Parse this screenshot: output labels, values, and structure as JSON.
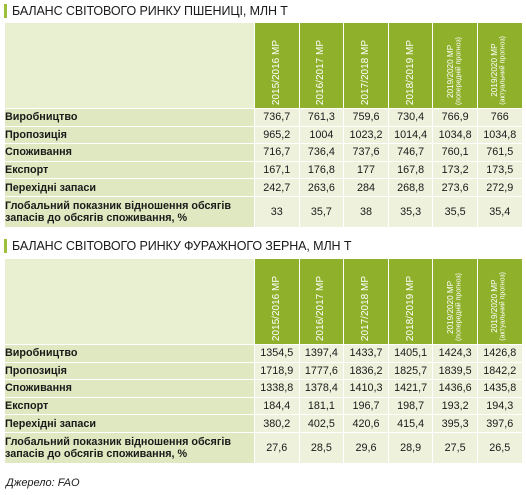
{
  "tables": [
    {
      "title": "БАЛАНС СВІТОВОГО РИНКУ ПШЕНИЦІ, МЛН Т",
      "columns": [
        {
          "year": "2015/2016 МР",
          "sub": ""
        },
        {
          "year": "2016/2017 МР",
          "sub": ""
        },
        {
          "year": "2017/2018 МР",
          "sub": ""
        },
        {
          "year": "2018/2019 МР",
          "sub": ""
        },
        {
          "year": "2019/2020 МР",
          "sub": "(попередній прогноз)"
        },
        {
          "year": "2019/2020 МР",
          "sub": "(актуальний прогноз)"
        }
      ],
      "rows": [
        {
          "label": "Виробництво",
          "values": [
            "736,7",
            "761,3",
            "759,6",
            "730,4",
            "766,9",
            "766"
          ]
        },
        {
          "label": "Пропозиція",
          "values": [
            "965,2",
            "1004",
            "1023,2",
            "1014,4",
            "1034,8",
            "1034,8"
          ]
        },
        {
          "label": "Споживання",
          "values": [
            "716,7",
            "736,4",
            "737,6",
            "746,7",
            "760,1",
            "761,5"
          ]
        },
        {
          "label": "Експорт",
          "values": [
            "167,1",
            "176,8",
            "177",
            "167,8",
            "173,2",
            "173,5"
          ]
        },
        {
          "label": "Перехідні запаси",
          "values": [
            "242,7",
            "263,6",
            "284",
            "268,8",
            "273,6",
            "272,9"
          ]
        },
        {
          "label": "Глобальний показник відношення обсягів запасів до обсягів споживання, %",
          "values": [
            "33",
            "35,7",
            "38",
            "35,3",
            "35,5",
            "35,4"
          ]
        }
      ]
    },
    {
      "title": "БАЛАНС СВІТОВОГО РИНКУ ФУРАЖНОГО ЗЕРНА, МЛН Т",
      "columns": [
        {
          "year": "2015/2016 МР",
          "sub": ""
        },
        {
          "year": "2016/2017 МР",
          "sub": ""
        },
        {
          "year": "2017/2018 МР",
          "sub": ""
        },
        {
          "year": "2018/2019 МР",
          "sub": ""
        },
        {
          "year": "2019/2020 МР",
          "sub": "(попередній прогноз)"
        },
        {
          "year": "2019/2020 МР",
          "sub": "(актуальний прогноз)"
        }
      ],
      "rows": [
        {
          "label": "Виробництво",
          "values": [
            "1354,5",
            "1397,4",
            "1433,7",
            "1405,1",
            "1424,3",
            "1426,8"
          ]
        },
        {
          "label": "Пропозиція",
          "values": [
            "1718,9",
            "1777,6",
            "1836,2",
            "1825,7",
            "1839,5",
            "1842,2"
          ]
        },
        {
          "label": "Споживання",
          "values": [
            "1338,8",
            "1378,4",
            "1410,3",
            "1421,7",
            "1436,6",
            "1435,8"
          ]
        },
        {
          "label": "Експорт",
          "values": [
            "184,4",
            "181,1",
            "196,7",
            "198,7",
            "193,2",
            "194,3"
          ]
        },
        {
          "label": "Перехідні запаси",
          "values": [
            "380,2",
            "402,5",
            "420,6",
            "415,4",
            "395,3",
            "397,6"
          ]
        },
        {
          "label": "Глобальний показник відношення обсягів запасів до обсягів споживання, %",
          "values": [
            "27,6",
            "28,5",
            "29,6",
            "28,9",
            "27,5",
            "26,5"
          ]
        }
      ]
    }
  ],
  "source": "Джерело: FAO",
  "colors": {
    "header_green": "#8fb02a",
    "label_bg": "#dfe8c0",
    "cell_bg": "#eef2dc",
    "accent": "#9ebf3b"
  }
}
